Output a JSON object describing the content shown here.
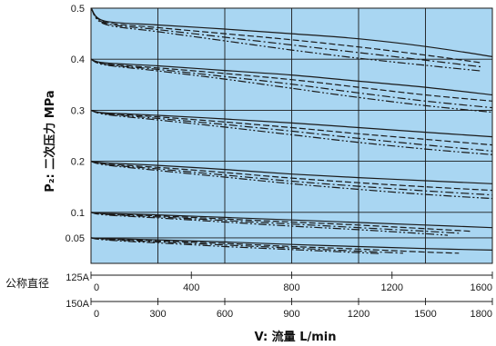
{
  "chart_data": {
    "type": "line",
    "background_color": "#a9d6f2",
    "grid_color": "#1a1a1a",
    "curve_color": "#1a1a1a",
    "ylabel": "P₂: 二次压力 MPa",
    "xlabel": "V: 流量 L/min",
    "ylim": [
      0,
      0.5
    ],
    "yticks": [
      "0.5",
      "0.4",
      "0.3",
      "0.2",
      "0.1",
      "0.05"
    ],
    "ytick_values": [
      0.5,
      0.4,
      0.3,
      0.2,
      0.1,
      0.05
    ],
    "grid": true,
    "row_group_label": "公称直径",
    "x_axes": [
      {
        "name": "125A",
        "ticks": [
          "0",
          "400",
          "800",
          "1200",
          "1600"
        ],
        "tick_values": [
          0,
          400,
          800,
          1200,
          1600
        ],
        "max": 1600
      },
      {
        "name": "150A",
        "ticks": [
          "0",
          "300",
          "600",
          "900",
          "1200",
          "1500",
          "1800"
        ],
        "tick_values": [
          0,
          300,
          600,
          900,
          1200,
          1500,
          1800
        ],
        "max": 1800
      }
    ],
    "x_unit_axis": "150A",
    "line_styles": [
      "solid",
      "dashed",
      "dashdot",
      "dashdotdot"
    ],
    "series": [
      {
        "set_pressure": 0.5,
        "style": "solid",
        "x": [
          0,
          60,
          300,
          600,
          900,
          1200,
          1500,
          1800
        ],
        "y": [
          0.5,
          0.475,
          0.467,
          0.459,
          0.45,
          0.44,
          0.425,
          0.405
        ]
      },
      {
        "set_pressure": 0.5,
        "style": "dashed",
        "x": [
          0,
          60,
          300,
          600,
          900,
          1200,
          1500,
          1750
        ],
        "y": [
          0.5,
          0.473,
          0.462,
          0.45,
          0.438,
          0.424,
          0.408,
          0.393
        ]
      },
      {
        "set_pressure": 0.5,
        "style": "dashdot",
        "x": [
          0,
          60,
          300,
          600,
          900,
          1200,
          1500,
          1750
        ],
        "y": [
          0.5,
          0.471,
          0.458,
          0.443,
          0.428,
          0.413,
          0.398,
          0.385
        ]
      },
      {
        "set_pressure": 0.5,
        "style": "dashdotdot",
        "x": [
          0,
          60,
          300,
          600,
          900,
          1200,
          1500,
          1750
        ],
        "y": [
          0.5,
          0.469,
          0.454,
          0.436,
          0.418,
          0.402,
          0.388,
          0.377
        ]
      },
      {
        "set_pressure": 0.4,
        "style": "solid",
        "x": [
          0,
          60,
          300,
          600,
          900,
          1200,
          1500,
          1800
        ],
        "y": [
          0.4,
          0.393,
          0.387,
          0.378,
          0.369,
          0.357,
          0.345,
          0.33
        ]
      },
      {
        "set_pressure": 0.4,
        "style": "dashed",
        "x": [
          0,
          60,
          300,
          600,
          900,
          1200,
          1500,
          1800
        ],
        "y": [
          0.4,
          0.391,
          0.383,
          0.372,
          0.36,
          0.345,
          0.33,
          0.318
        ]
      },
      {
        "set_pressure": 0.4,
        "style": "dashdot",
        "x": [
          0,
          60,
          300,
          600,
          900,
          1200,
          1500,
          1800
        ],
        "y": [
          0.4,
          0.39,
          0.38,
          0.366,
          0.351,
          0.334,
          0.318,
          0.305
        ]
      },
      {
        "set_pressure": 0.4,
        "style": "dashdotdot",
        "x": [
          0,
          60,
          300,
          600,
          900,
          1200,
          1500,
          1800
        ],
        "y": [
          0.4,
          0.389,
          0.377,
          0.361,
          0.343,
          0.325,
          0.309,
          0.296
        ]
      },
      {
        "set_pressure": 0.3,
        "style": "solid",
        "x": [
          0,
          60,
          300,
          600,
          900,
          1200,
          1500,
          1800
        ],
        "y": [
          0.3,
          0.295,
          0.29,
          0.283,
          0.275,
          0.266,
          0.257,
          0.248
        ]
      },
      {
        "set_pressure": 0.3,
        "style": "dashed",
        "x": [
          0,
          60,
          300,
          600,
          900,
          1200,
          1500,
          1800
        ],
        "y": [
          0.3,
          0.294,
          0.287,
          0.277,
          0.266,
          0.254,
          0.243,
          0.232
        ]
      },
      {
        "set_pressure": 0.3,
        "style": "dashdot",
        "x": [
          0,
          60,
          300,
          600,
          900,
          1200,
          1500,
          1800
        ],
        "y": [
          0.3,
          0.293,
          0.284,
          0.272,
          0.259,
          0.245,
          0.232,
          0.22
        ]
      },
      {
        "set_pressure": 0.3,
        "style": "dashdotdot",
        "x": [
          0,
          60,
          300,
          600,
          900,
          1200,
          1500,
          1800
        ],
        "y": [
          0.3,
          0.292,
          0.281,
          0.267,
          0.252,
          0.237,
          0.224,
          0.213
        ]
      },
      {
        "set_pressure": 0.2,
        "style": "solid",
        "x": [
          0,
          60,
          300,
          600,
          900,
          1200,
          1500,
          1800
        ],
        "y": [
          0.2,
          0.197,
          0.192,
          0.184,
          0.175,
          0.168,
          0.162,
          0.156
        ]
      },
      {
        "set_pressure": 0.2,
        "style": "dashed",
        "x": [
          0,
          60,
          300,
          600,
          900,
          1200,
          1500,
          1800
        ],
        "y": [
          0.2,
          0.195,
          0.188,
          0.178,
          0.167,
          0.158,
          0.15,
          0.143
        ]
      },
      {
        "set_pressure": 0.2,
        "style": "dashdot",
        "x": [
          0,
          60,
          300,
          600,
          900,
          1200,
          1500,
          1800
        ],
        "y": [
          0.2,
          0.194,
          0.185,
          0.173,
          0.161,
          0.151,
          0.142,
          0.134
        ]
      },
      {
        "set_pressure": 0.2,
        "style": "dashdotdot",
        "x": [
          0,
          60,
          300,
          600,
          900,
          1200,
          1500,
          1800
        ],
        "y": [
          0.2,
          0.193,
          0.182,
          0.169,
          0.156,
          0.145,
          0.135,
          0.127
        ]
      },
      {
        "set_pressure": 0.1,
        "style": "solid",
        "x": [
          0,
          60,
          300,
          600,
          900,
          1200,
          1500,
          1800
        ],
        "y": [
          0.1,
          0.098,
          0.095,
          0.09,
          0.085,
          0.08,
          0.075,
          0.07
        ]
      },
      {
        "set_pressure": 0.1,
        "style": "dashed",
        "x": [
          0,
          60,
          300,
          600,
          900,
          1200,
          1500,
          1700
        ],
        "y": [
          0.1,
          0.097,
          0.093,
          0.087,
          0.081,
          0.075,
          0.068,
          0.063
        ]
      },
      {
        "set_pressure": 0.1,
        "style": "dashdot",
        "x": [
          0,
          60,
          300,
          600,
          900,
          1200,
          1500,
          1650
        ],
        "y": [
          0.1,
          0.096,
          0.091,
          0.084,
          0.077,
          0.07,
          0.063,
          0.059
        ]
      },
      {
        "set_pressure": 0.1,
        "style": "dashdotdot",
        "x": [
          0,
          60,
          300,
          600,
          900,
          1200,
          1500,
          1600
        ],
        "y": [
          0.1,
          0.095,
          0.089,
          0.081,
          0.073,
          0.066,
          0.058,
          0.055
        ]
      },
      {
        "set_pressure": 0.05,
        "style": "solid",
        "x": [
          0,
          60,
          300,
          600,
          900,
          1200,
          1500,
          1800
        ],
        "y": [
          0.05,
          0.049,
          0.046,
          0.042,
          0.037,
          0.033,
          0.029,
          0.026
        ]
      },
      {
        "set_pressure": 0.05,
        "style": "dashed",
        "x": [
          0,
          60,
          300,
          600,
          900,
          1200,
          1500,
          1650
        ],
        "y": [
          0.05,
          0.048,
          0.044,
          0.039,
          0.033,
          0.028,
          0.022,
          0.02
        ]
      },
      {
        "set_pressure": 0.05,
        "style": "dashdot",
        "x": [
          0,
          60,
          300,
          600,
          900,
          1200,
          1400
        ],
        "y": [
          0.05,
          0.047,
          0.042,
          0.036,
          0.03,
          0.024,
          0.02
        ]
      },
      {
        "set_pressure": 0.05,
        "style": "dashdotdot",
        "x": [
          0,
          60,
          300,
          600,
          900,
          1200,
          1300
        ],
        "y": [
          0.05,
          0.046,
          0.04,
          0.033,
          0.027,
          0.021,
          0.019
        ]
      }
    ]
  }
}
